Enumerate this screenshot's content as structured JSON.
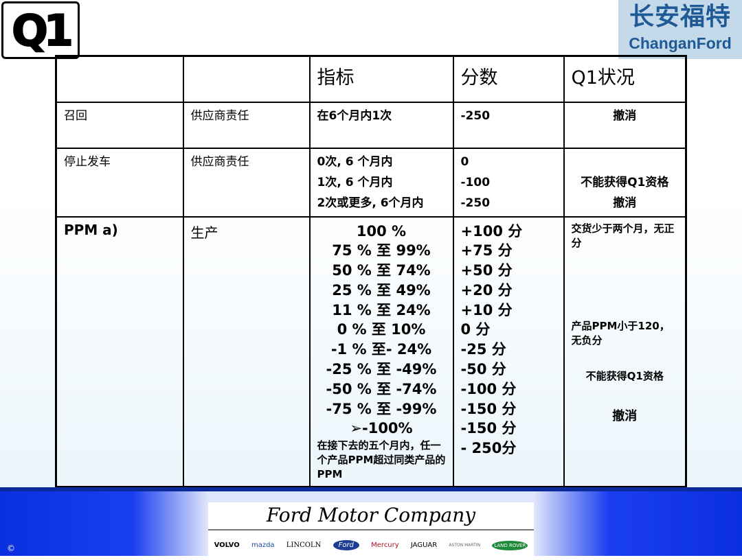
{
  "header": {
    "q1_logo": "Q1",
    "brand_cn": "长安福特",
    "brand_en": "ChanganFord"
  },
  "table": {
    "columns": [
      "",
      "",
      "指标",
      "分数",
      "Q1状况"
    ],
    "rows": [
      {
        "cat": "召回",
        "resp": "供应商责任",
        "metric": [
          "在6个月内1次"
        ],
        "score": [
          "-250"
        ],
        "status": [
          "撤消"
        ]
      },
      {
        "cat": "停止发车",
        "resp": "供应商责任",
        "metric": [
          "0次, 6 个月内",
          "1次, 6 个月内",
          "2次或更多, 6个月内"
        ],
        "score": [
          "0",
          "-100",
          "-250"
        ],
        "status": [
          "不能获得Q1资格",
          "撤消"
        ]
      },
      {
        "cat": "PPM a)",
        "resp": "生产",
        "metric": [
          "100 %",
          "75 % 至 99%",
          "50 % 至 74%",
          "25 % 至 49%",
          "11 % 至 24%",
          "0 %  至 10%",
          "-1 %  至- 24%",
          "-25 % 至 -49%",
          "-50 % 至 -74%",
          "-75 %  至 -99%",
          "➢-100%"
        ],
        "metric_note": "在接下去的五个月内，任一个产品PPM超过同类产品的PPM",
        "score": [
          "+100 分",
          "+75 分",
          "+50 分",
          "+20 分",
          "+10 分",
          "0 分",
          "-25 分",
          "-50 分",
          "-100 分",
          "-150 分",
          "-150 分",
          "- 250分"
        ],
        "status_notes": [
          "交货少于两个月，无正分",
          "产品PPM小于120，无负分",
          "不能获得Q1资格",
          "撤消"
        ]
      }
    ]
  },
  "footer": {
    "company": "Ford Motor Company",
    "brands": [
      "VOLVO",
      "mazda",
      "LINCOLN",
      "Ford",
      "Mercury",
      "JAGUAR",
      "ASTON MARTIN",
      "LAND ROVER"
    ],
    "copyright": "©"
  }
}
